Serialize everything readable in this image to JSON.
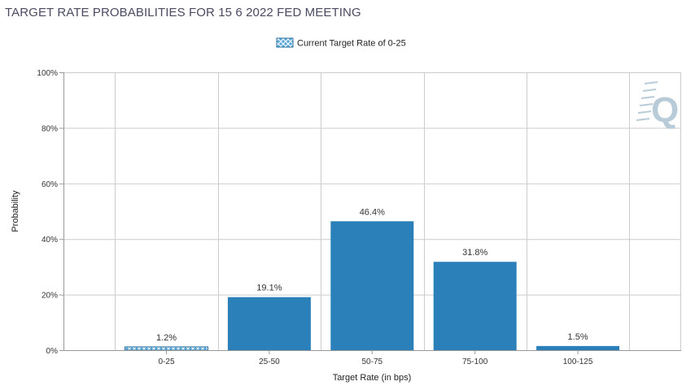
{
  "colors": {
    "bar": "#2b80b9",
    "bar_current": "#5aa8d8",
    "bar_current_hatch": "#ffffff",
    "bar_current_border": "#2b6f9e",
    "grid": "#cccccc",
    "axis": "#999999",
    "logo": "#b8cbd8"
  },
  "logo": {
    "letter": "Q",
    "icon": "cme-fedwatch-logo-icon"
  },
  "chart_data": {
    "type": "bar",
    "title": "TARGET RATE PROBABILITIES FOR 15 6 2022 FED MEETING",
    "xlabel": "Target Rate (in bps)",
    "ylabel": "Probability",
    "categories": [
      "0-25",
      "25-50",
      "50-75",
      "75-100",
      "100-125"
    ],
    "values": [
      1.2,
      19.1,
      46.4,
      31.8,
      1.5
    ],
    "data_labels": [
      "1.2%",
      "19.1%",
      "46.4%",
      "31.8%",
      "1.5%"
    ],
    "current_index": 0,
    "ylim": [
      0,
      100
    ],
    "yticks": [
      0,
      20,
      40,
      60,
      80,
      100
    ],
    "ytick_labels": [
      "0%",
      "20%",
      "40%",
      "60%",
      "80%",
      "100%"
    ],
    "grid": true,
    "legend": {
      "placement": "top-center",
      "label": "Current Target Rate of 0-25"
    }
  }
}
